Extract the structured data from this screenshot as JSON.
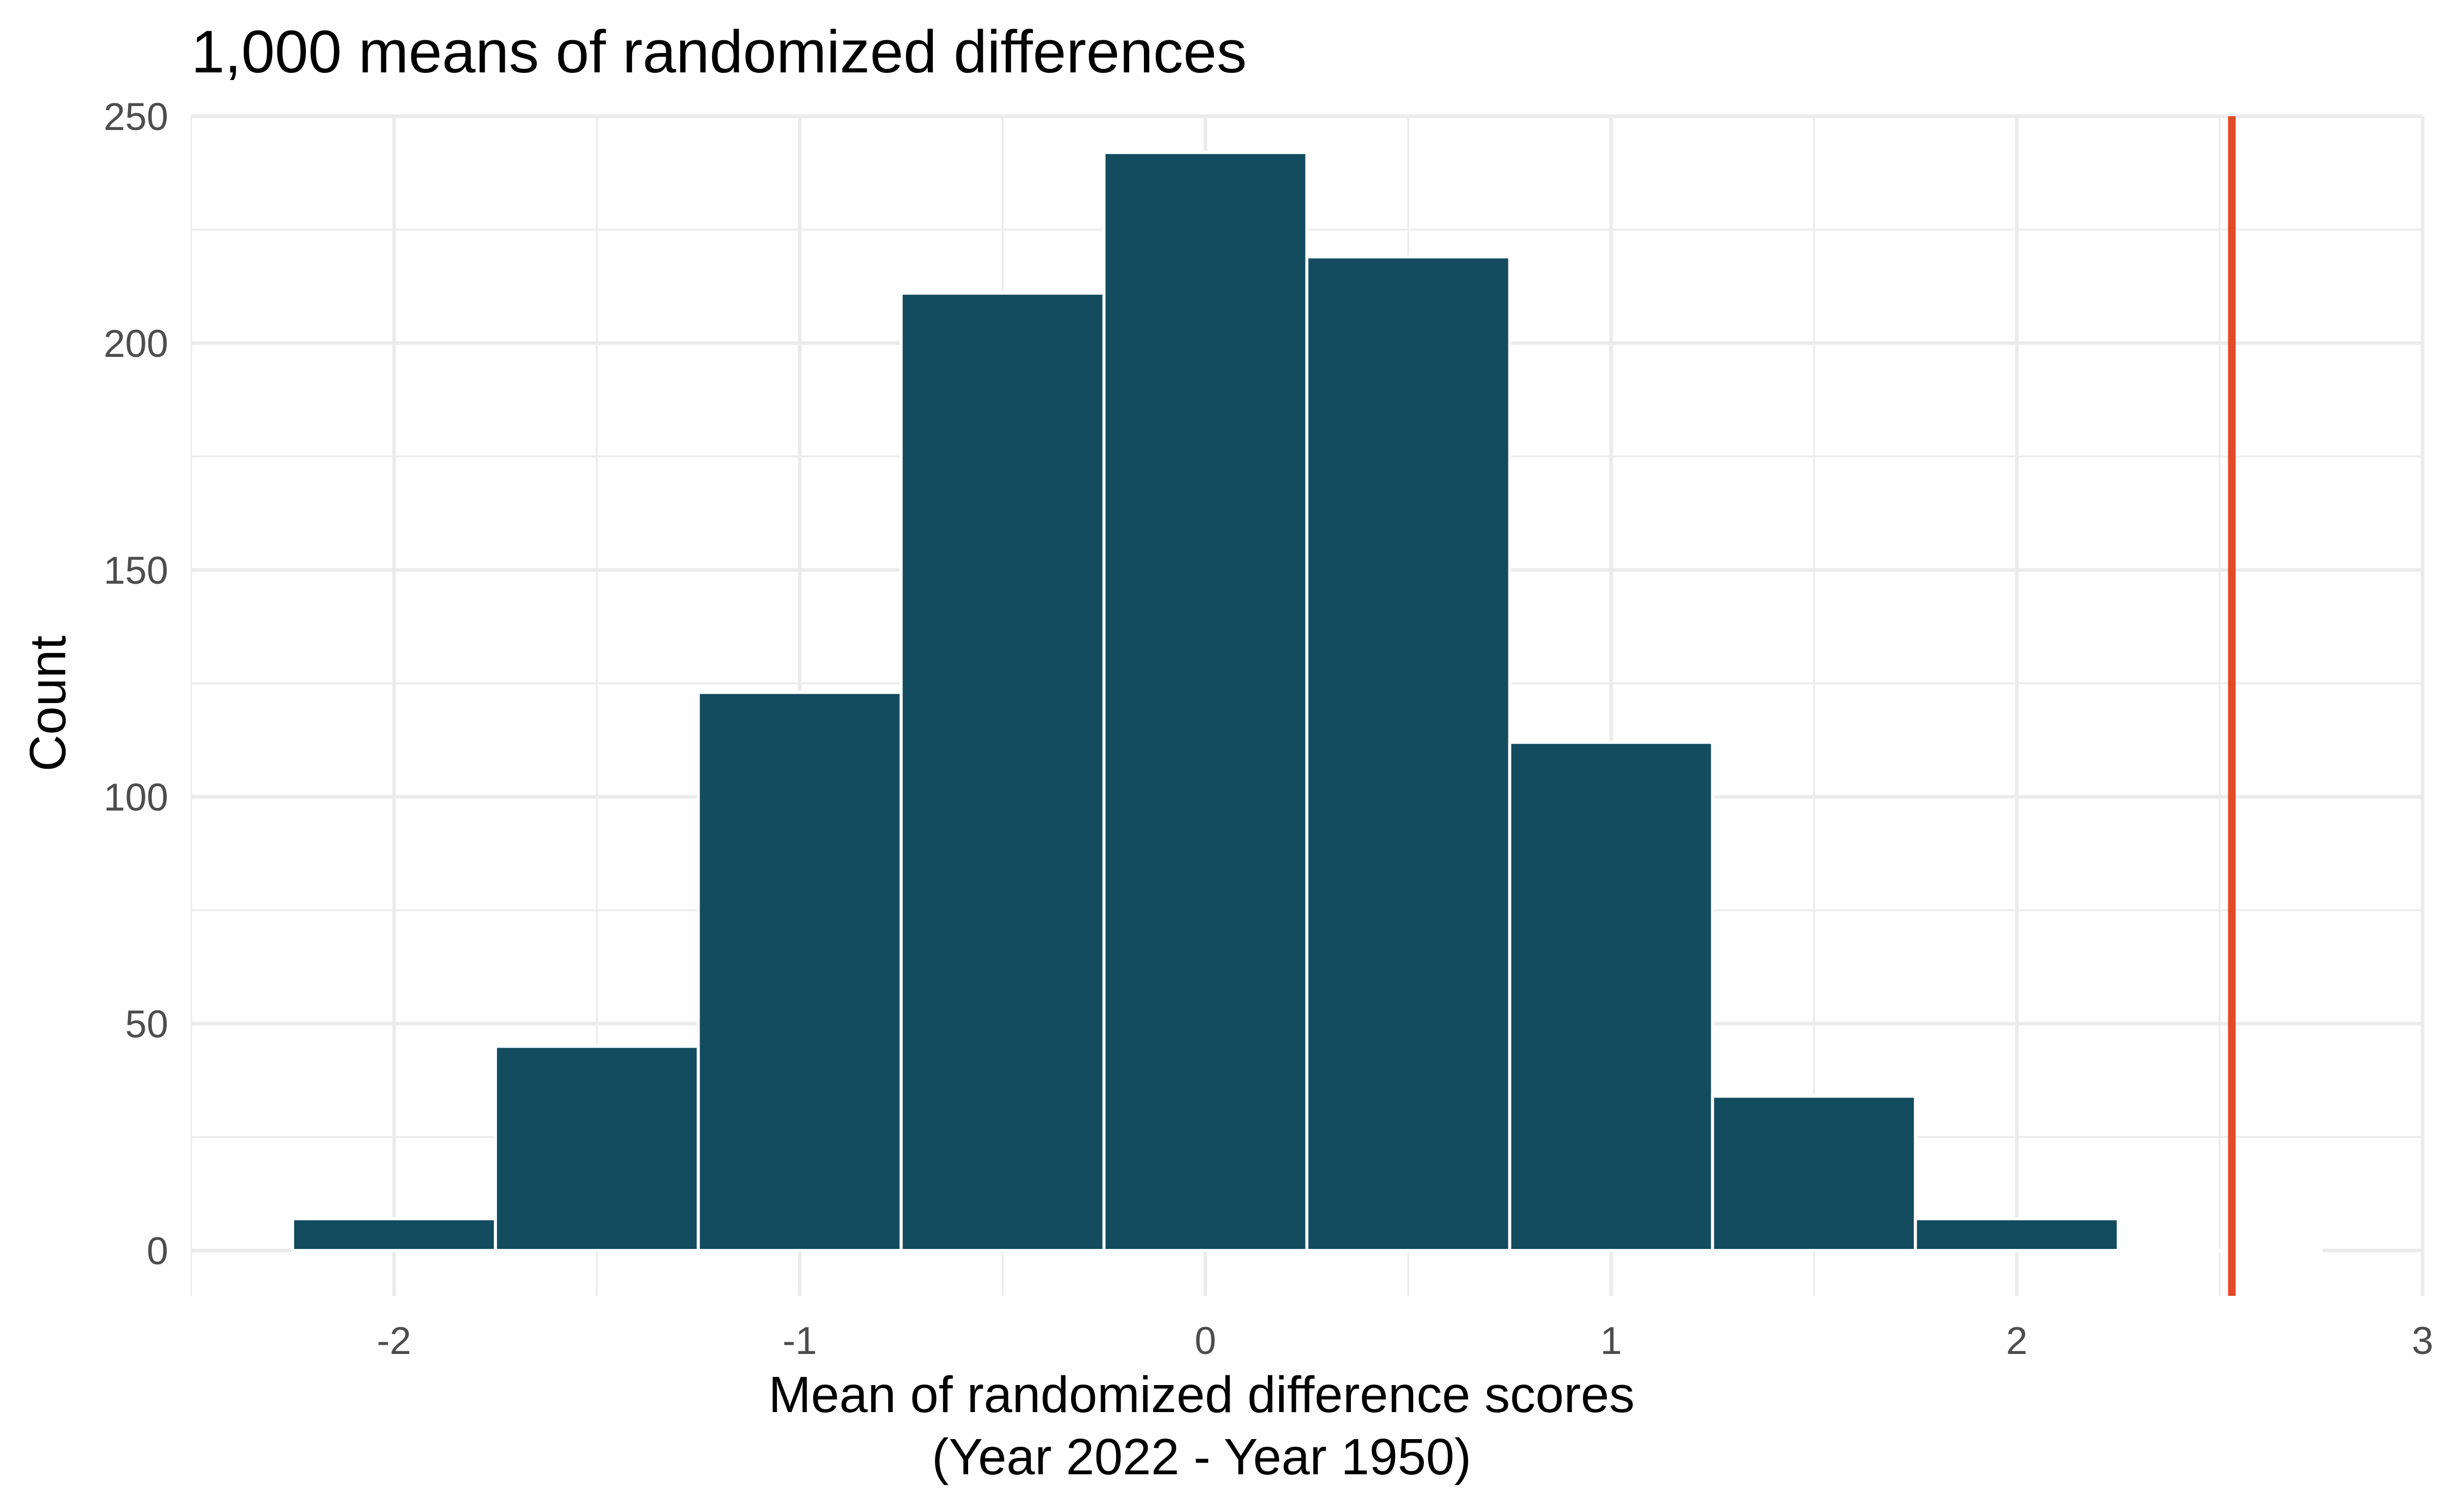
{
  "chart_data": {
    "type": "bar",
    "title": "1,000 means of randomized differences",
    "xlabel": [
      "Mean of randomized difference scores",
      "(Year 2022 - Year 1950)"
    ],
    "ylabel": "Count",
    "xlim": [
      -2.5,
      3
    ],
    "ylim": [
      -10,
      250
    ],
    "x_ticks": [
      -2,
      -1,
      0,
      1,
      2,
      3
    ],
    "x_tick_labels": [
      "-2",
      "-1",
      "0",
      "1",
      "2",
      "3"
    ],
    "y_ticks": [
      0,
      50,
      100,
      150,
      200,
      250
    ],
    "y_tick_labels": [
      "0",
      "50",
      "100",
      "150",
      "200",
      "250"
    ],
    "bin_width": 0.5,
    "bins": [
      {
        "x_start": -2.25,
        "x_end": -1.75,
        "count": 7
      },
      {
        "x_start": -1.75,
        "x_end": -1.25,
        "count": 45
      },
      {
        "x_start": -1.25,
        "x_end": -0.75,
        "count": 123
      },
      {
        "x_start": -0.75,
        "x_end": -0.25,
        "count": 211
      },
      {
        "x_start": -0.25,
        "x_end": 0.25,
        "count": 242
      },
      {
        "x_start": 0.25,
        "x_end": 0.75,
        "count": 219
      },
      {
        "x_start": 0.75,
        "x_end": 1.25,
        "count": 112
      },
      {
        "x_start": 1.25,
        "x_end": 1.75,
        "count": 34
      },
      {
        "x_start": 1.75,
        "x_end": 2.25,
        "count": 7
      },
      {
        "x_start": 2.25,
        "x_end": 2.75,
        "count": 0
      }
    ],
    "reference_line": {
      "x": 2.53,
      "color": "#e34a27"
    },
    "bar_color": "#134b5f",
    "grid": true
  }
}
